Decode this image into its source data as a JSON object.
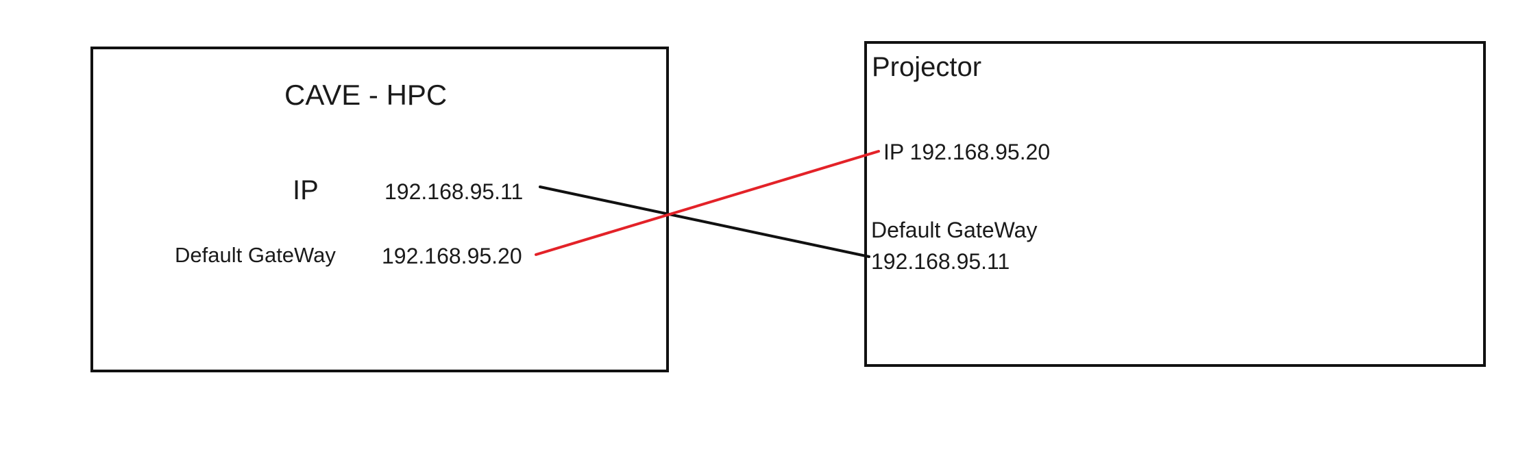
{
  "hpc": {
    "title": "CAVE - HPC",
    "ip_label": "IP",
    "ip_value": "192.168.95.11",
    "gateway_label": "Default GateWay",
    "gateway_value": "192.168.95.20"
  },
  "projector": {
    "title": "Projector",
    "ip_text": "IP 192.168.95.20",
    "gateway_label": "Default GateWay",
    "gateway_value": "192.168.95.11"
  },
  "links": [
    {
      "name": "ip-to-projector-gateway",
      "color": "#111111"
    },
    {
      "name": "gateway-to-projector-ip",
      "color": "#e32228"
    }
  ]
}
